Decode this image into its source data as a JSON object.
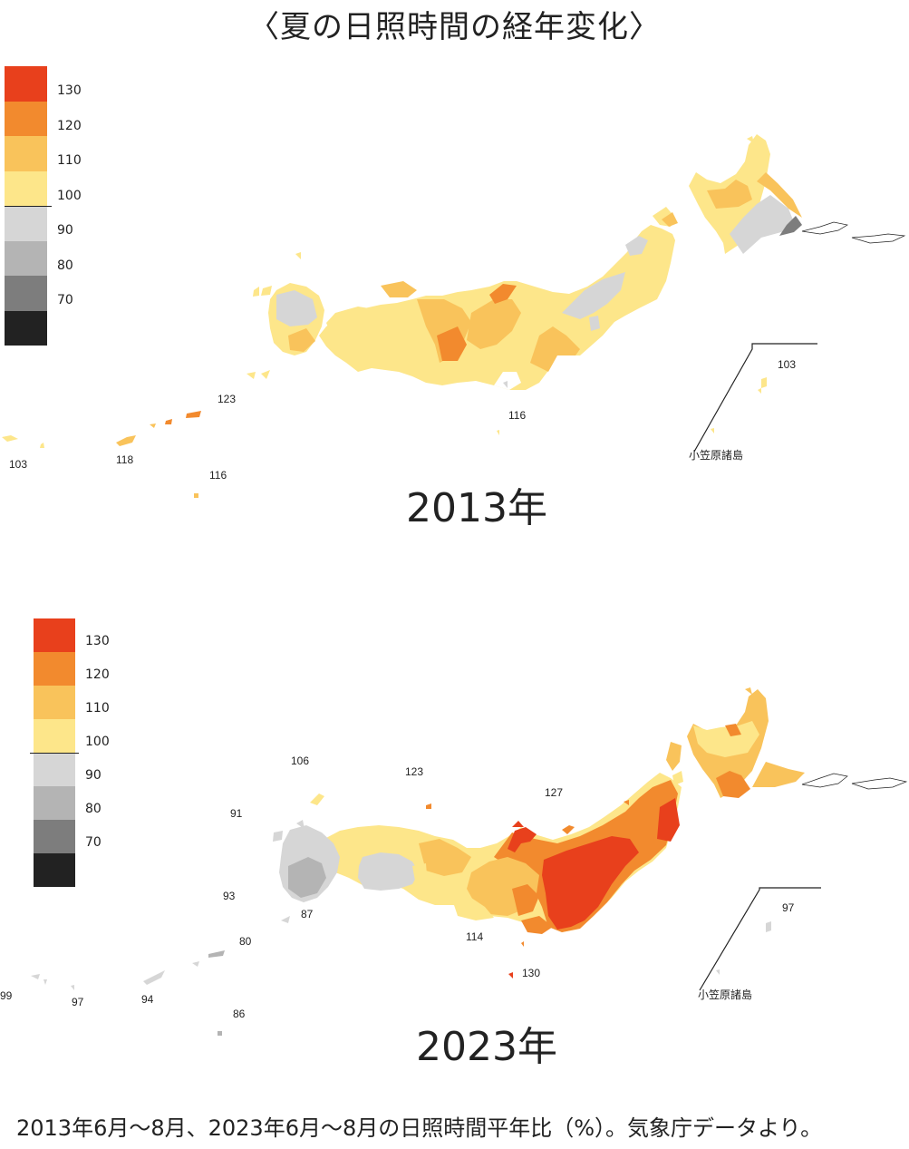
{
  "title": "〈夏の日照時間の経年変化〉",
  "colors": {
    "c130": "#e8401c",
    "c120": "#f28a2e",
    "c110": "#f9c35b",
    "c100": "#fde68a",
    "c90": "#d6d6d6",
    "c80": "#b4b4b4",
    "c70": "#7d7d7d",
    "c60": "#222222"
  },
  "legend": {
    "bins": [
      "130",
      "120",
      "110",
      "100",
      "90",
      "80",
      "70",
      ""
    ],
    "labels": [
      "130",
      "120",
      "110",
      "100",
      "90",
      "80",
      "70"
    ]
  },
  "maps": [
    {
      "year_label": "2013年",
      "values": {
        "ogasawara": "103",
        "izu": "116",
        "okinawa": "118",
        "amami": "123",
        "yaeyama": "103",
        "daito": "116"
      },
      "ogasawara_label": "小笠原諸島"
    },
    {
      "year_label": "2023年",
      "values": {
        "ogasawara": "97",
        "izu": "130",
        "izu_n": "114",
        "tohoku": "127",
        "hokuriku": "123",
        "tsushima": "106",
        "goto": "91",
        "kyushu_w": "93",
        "kyushu_s": "87",
        "amami": "80",
        "okinawa": "94",
        "yaeyama": "99",
        "yonaguni": "97",
        "daito": "86"
      },
      "ogasawara_label": "小笠原諸島"
    }
  ],
  "footnote": "2013年6月〜8月、2023年6月〜8月の日照時間平年比（%）。気象庁データより。"
}
